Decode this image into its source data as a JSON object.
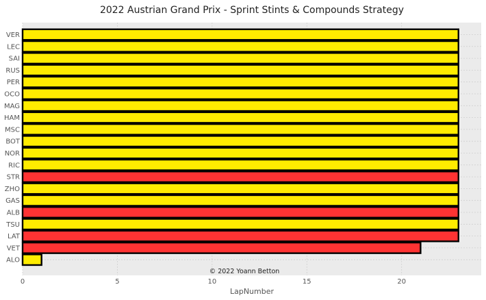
{
  "chart_data": {
    "type": "bar",
    "orientation": "horizontal",
    "stacked": true,
    "title": "2022 Austrian Grand Prix - Sprint Stints & Compounds Strategy",
    "xlabel": "LapNumber",
    "ylabel": "",
    "xlim": [
      0,
      24.2
    ],
    "xticks": [
      0,
      5,
      10,
      15,
      20
    ],
    "grid": true,
    "legend": "none",
    "annotation": "© 2022 Yoann Betton",
    "compound_colors": {
      "MEDIUM": "#ffec00",
      "SOFT": "#ff3333"
    },
    "categories": [
      "VER",
      "LEC",
      "SAI",
      "RUS",
      "PER",
      "OCO",
      "MAG",
      "HAM",
      "MSC",
      "BOT",
      "NOR",
      "RIC",
      "STR",
      "ZHO",
      "GAS",
      "ALB",
      "TSU",
      "LAT",
      "VET",
      "ALO"
    ],
    "stints": [
      {
        "driver": "VER",
        "compound": "MEDIUM",
        "start": 0,
        "end": 23
      },
      {
        "driver": "LEC",
        "compound": "MEDIUM",
        "start": 0,
        "end": 23
      },
      {
        "driver": "SAI",
        "compound": "MEDIUM",
        "start": 0,
        "end": 23
      },
      {
        "driver": "RUS",
        "compound": "MEDIUM",
        "start": 0,
        "end": 23
      },
      {
        "driver": "PER",
        "compound": "MEDIUM",
        "start": 0,
        "end": 23
      },
      {
        "driver": "OCO",
        "compound": "MEDIUM",
        "start": 0,
        "end": 23
      },
      {
        "driver": "MAG",
        "compound": "MEDIUM",
        "start": 0,
        "end": 23
      },
      {
        "driver": "HAM",
        "compound": "MEDIUM",
        "start": 0,
        "end": 23
      },
      {
        "driver": "MSC",
        "compound": "MEDIUM",
        "start": 0,
        "end": 23
      },
      {
        "driver": "BOT",
        "compound": "MEDIUM",
        "start": 0,
        "end": 23
      },
      {
        "driver": "NOR",
        "compound": "MEDIUM",
        "start": 0,
        "end": 23
      },
      {
        "driver": "RIC",
        "compound": "MEDIUM",
        "start": 0,
        "end": 23
      },
      {
        "driver": "STR",
        "compound": "SOFT",
        "start": 0,
        "end": 23
      },
      {
        "driver": "ZHO",
        "compound": "MEDIUM",
        "start": 0,
        "end": 23
      },
      {
        "driver": "GAS",
        "compound": "MEDIUM",
        "start": 0,
        "end": 23
      },
      {
        "driver": "ALB",
        "compound": "SOFT",
        "start": 0,
        "end": 23
      },
      {
        "driver": "TSU",
        "compound": "MEDIUM",
        "start": 0,
        "end": 23
      },
      {
        "driver": "LAT",
        "compound": "SOFT",
        "start": 0,
        "end": 23
      },
      {
        "driver": "VET",
        "compound": "SOFT",
        "start": 0,
        "end": 21
      },
      {
        "driver": "ALO",
        "compound": "MEDIUM",
        "start": 0,
        "end": 1
      }
    ]
  }
}
